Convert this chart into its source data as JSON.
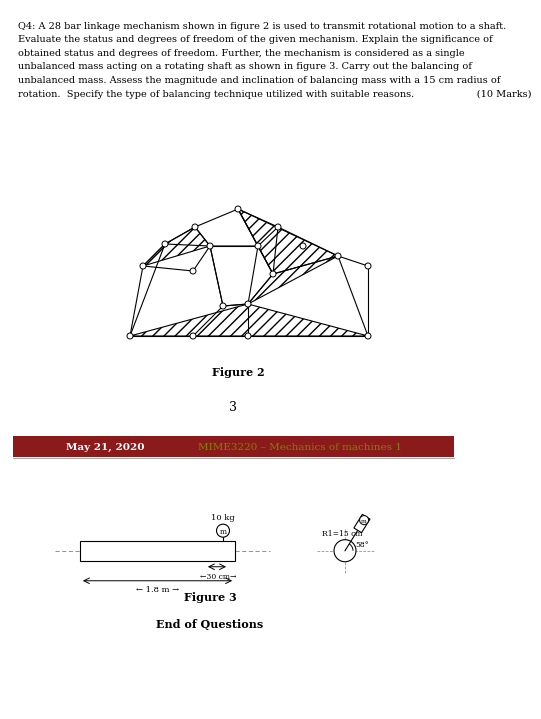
{
  "page1_bg": "#ffffff",
  "page2_bg": "#f0f0f0",
  "header_bg": "#8B1A1A",
  "header_text_color": "#ffffff",
  "header_date": "May 21, 2020",
  "header_course": "MIME3220 – Mechanics of machines 1",
  "header_course_color": "#808000",
  "question_text_lines": [
    "Q4: A 28 bar linkage mechanism shown in figure 2 is used to transmit rotational motion to a shaft.",
    "Evaluate the status and degrees of freedom of the given mechanism. Explain the significance of",
    "obtained status and degrees of freedom. Further, the mechanism is considered as a single",
    "unbalanced mass acting on a rotating shaft as shown in figure 3. Carry out the balancing of",
    "unbalanced mass. Assess the magnitude and inclination of balancing mass with a 15 cm radius of",
    "rotation.  Specify the type of balancing technique utilized with suitable reasons.                    (10 Marks)"
  ],
  "fig2_label": "Figure 2",
  "fig3_label": "Figure 3",
  "page_num": "3",
  "end_text": "End of Questions",
  "divider_color": "#bbbbbb",
  "text_color": "#000000"
}
